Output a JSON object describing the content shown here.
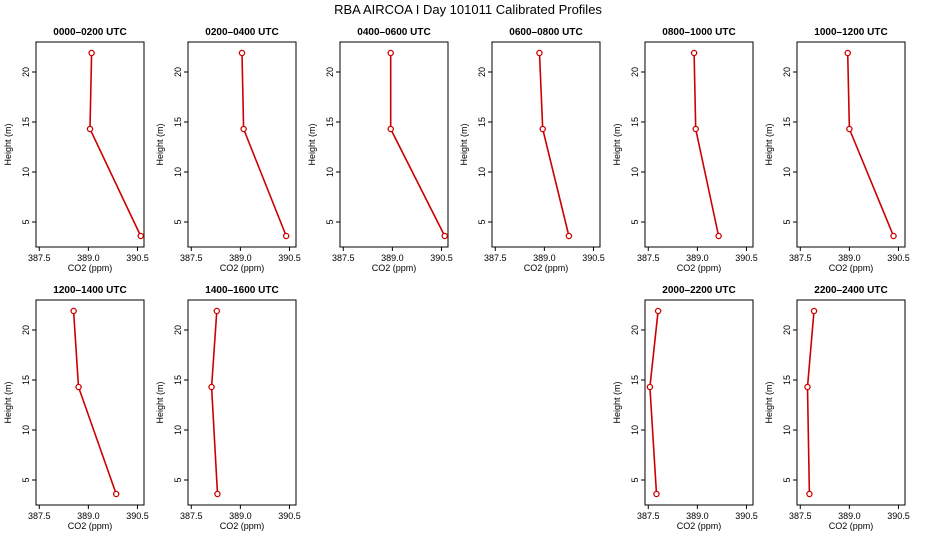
{
  "page": {
    "title": "RBA AIRCOA I  Day 101011  Calibrated Profiles"
  },
  "chart_data": [
    {
      "type": "line",
      "title": "0000–0200 UTC",
      "xlabel": "CO2 (ppm)",
      "ylabel": "Height (m)",
      "xlim": [
        387.4,
        390.7
      ],
      "ylim": [
        2.5,
        23
      ],
      "xticks": [
        387.5,
        389.0,
        390.5
      ],
      "yticks": [
        5,
        10,
        15,
        20
      ],
      "series": [
        {
          "color": "#cc0000",
          "points": [
            [
              390.6,
              3.6
            ],
            [
              389.05,
              14.3
            ],
            [
              389.1,
              21.9
            ]
          ]
        }
      ]
    },
    {
      "type": "line",
      "title": "0200–0400 UTC",
      "xlabel": "CO2 (ppm)",
      "ylabel": "Height (m)",
      "xlim": [
        387.4,
        390.7
      ],
      "ylim": [
        2.5,
        23
      ],
      "xticks": [
        387.5,
        389.0,
        390.5
      ],
      "yticks": [
        5,
        10,
        15,
        20
      ],
      "series": [
        {
          "color": "#cc0000",
          "points": [
            [
              390.4,
              3.6
            ],
            [
              389.1,
              14.3
            ],
            [
              389.05,
              21.9
            ]
          ]
        }
      ]
    },
    {
      "type": "line",
      "title": "0400–0600 UTC",
      "xlabel": "CO2 (ppm)",
      "ylabel": "Height (m)",
      "xlim": [
        387.4,
        390.7
      ],
      "ylim": [
        2.5,
        23
      ],
      "xticks": [
        387.5,
        389.0,
        390.5
      ],
      "yticks": [
        5,
        10,
        15,
        20
      ],
      "series": [
        {
          "color": "#cc0000",
          "points": [
            [
              390.6,
              3.6
            ],
            [
              388.95,
              14.3
            ],
            [
              388.95,
              21.9
            ]
          ]
        }
      ]
    },
    {
      "type": "line",
      "title": "0600–0800 UTC",
      "xlabel": "CO2 (ppm)",
      "ylabel": "Height (m)",
      "xlim": [
        387.4,
        390.7
      ],
      "ylim": [
        2.5,
        23
      ],
      "xticks": [
        387.5,
        389.0,
        390.5
      ],
      "yticks": [
        5,
        10,
        15,
        20
      ],
      "series": [
        {
          "color": "#cc0000",
          "points": [
            [
              389.75,
              3.6
            ],
            [
              388.95,
              14.3
            ],
            [
              388.85,
              21.9
            ]
          ]
        }
      ]
    },
    {
      "type": "line",
      "title": "0800–1000 UTC",
      "xlabel": "CO2 (ppm)",
      "ylabel": "Height (m)",
      "xlim": [
        387.4,
        390.7
      ],
      "ylim": [
        2.5,
        23
      ],
      "xticks": [
        387.5,
        389.0,
        390.5
      ],
      "yticks": [
        5,
        10,
        15,
        20
      ],
      "series": [
        {
          "color": "#cc0000",
          "points": [
            [
              389.65,
              3.6
            ],
            [
              388.95,
              14.3
            ],
            [
              388.9,
              21.9
            ]
          ]
        }
      ]
    },
    {
      "type": "line",
      "title": "1000–1200 UTC",
      "xlabel": "CO2 (ppm)",
      "ylabel": "Height (m)",
      "xlim": [
        387.4,
        390.7
      ],
      "ylim": [
        2.5,
        23
      ],
      "xticks": [
        387.5,
        389.0,
        390.5
      ],
      "yticks": [
        5,
        10,
        15,
        20
      ],
      "series": [
        {
          "color": "#cc0000",
          "points": [
            [
              390.35,
              3.6
            ],
            [
              389.0,
              14.3
            ],
            [
              388.95,
              21.9
            ]
          ]
        }
      ]
    },
    {
      "type": "line",
      "title": "1200–1400 UTC",
      "xlabel": "CO2 (ppm)",
      "ylabel": "Height (m)",
      "xlim": [
        387.4,
        390.7
      ],
      "ylim": [
        2.5,
        23
      ],
      "xticks": [
        387.5,
        389.0,
        390.5
      ],
      "yticks": [
        5,
        10,
        15,
        20
      ],
      "series": [
        {
          "color": "#cc0000",
          "points": [
            [
              389.85,
              3.6
            ],
            [
              388.7,
              14.3
            ],
            [
              388.55,
              21.9
            ]
          ]
        }
      ]
    },
    {
      "type": "line",
      "title": "1400–1600 UTC",
      "xlabel": "CO2 (ppm)",
      "ylabel": "Height (m)",
      "xlim": [
        387.4,
        390.7
      ],
      "ylim": [
        2.5,
        23
      ],
      "xticks": [
        387.5,
        389.0,
        390.5
      ],
      "yticks": [
        5,
        10,
        15,
        20
      ],
      "series": [
        {
          "color": "#cc0000",
          "points": [
            [
              388.3,
              3.6
            ],
            [
              388.12,
              14.3
            ],
            [
              388.28,
              21.9
            ]
          ]
        }
      ]
    },
    null,
    null,
    {
      "type": "line",
      "title": "2000–2200 UTC",
      "xlabel": "CO2 (ppm)",
      "ylabel": "Height (m)",
      "xlim": [
        387.4,
        390.7
      ],
      "ylim": [
        2.5,
        23
      ],
      "xticks": [
        387.5,
        389.0,
        390.5
      ],
      "yticks": [
        5,
        10,
        15,
        20
      ],
      "series": [
        {
          "color": "#cc0000",
          "points": [
            [
              387.75,
              3.6
            ],
            [
              387.55,
              14.3
            ],
            [
              387.8,
              21.9
            ]
          ]
        }
      ]
    },
    {
      "type": "line",
      "title": "2200–2400 UTC",
      "xlabel": "CO2 (ppm)",
      "ylabel": "Height (m)",
      "xlim": [
        387.4,
        390.7
      ],
      "ylim": [
        2.5,
        23
      ],
      "xticks": [
        387.5,
        389.0,
        390.5
      ],
      "yticks": [
        5,
        10,
        15,
        20
      ],
      "series": [
        {
          "color": "#cc0000",
          "points": [
            [
              387.78,
              3.6
            ],
            [
              387.72,
              14.3
            ],
            [
              387.92,
              21.9
            ]
          ]
        }
      ]
    }
  ]
}
